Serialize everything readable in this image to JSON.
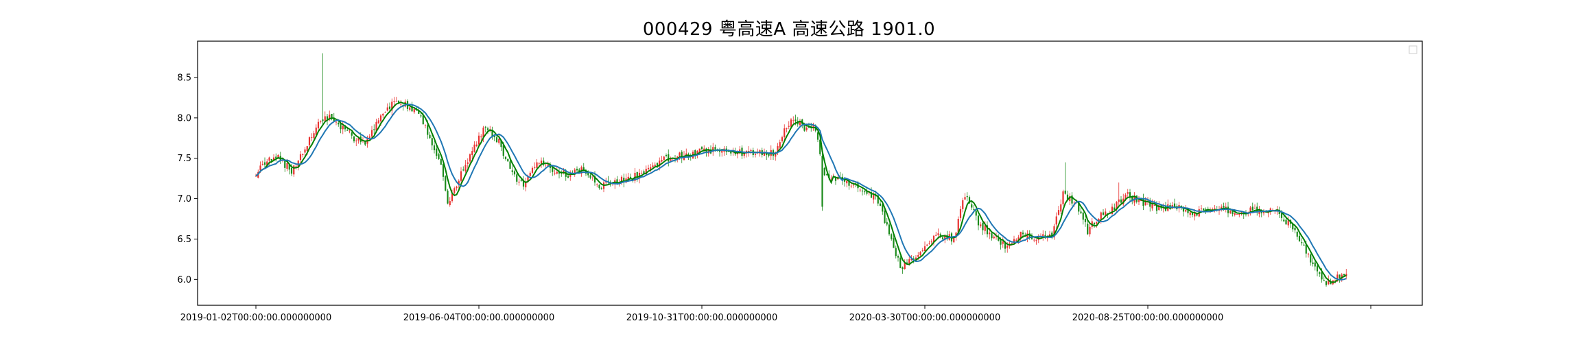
{
  "chart_data": {
    "type": "candlestick",
    "title": "000429 粤高速A 高速公路 1901.0",
    "xlabel": "",
    "ylabel": "",
    "ylim": [
      5.68,
      8.95
    ],
    "grid": false,
    "legend": {
      "placement": "top-right",
      "entries": []
    },
    "y_ticks": [
      6.0,
      6.5,
      7.0,
      7.5,
      8.0,
      8.5
    ],
    "y_tick_labels": [
      "6.0",
      "6.5",
      "7.0",
      "7.5",
      "8.0",
      "8.5"
    ],
    "x_tick_labels": [
      "2019-01-02T00:00:00.000000000",
      "2019-06-04T00:00:00.000000000",
      "2019-10-31T00:00:00.000000000",
      "2020-03-30T00:00:00.000000000",
      "2020-08-25T00:00:00.000000000",
      ""
    ],
    "x_tick_index": [
      0,
      100,
      200,
      300,
      400,
      500
    ],
    "colors": {
      "up": "#e8312f",
      "down": "#1a8a1a",
      "ma_short": "#008000",
      "ma_long": "#1f77b4"
    },
    "series": [
      {
        "kind": "candlestick",
        "values": []
      },
      {
        "kind": "moving-average-short",
        "values": []
      },
      {
        "kind": "moving-average-long",
        "values": []
      }
    ],
    "close_anchors": [
      [
        0,
        7.3
      ],
      [
        4,
        7.45
      ],
      [
        10,
        7.5
      ],
      [
        16,
        7.35
      ],
      [
        22,
        7.6
      ],
      [
        28,
        7.95
      ],
      [
        33,
        8.0
      ],
      [
        38,
        7.9
      ],
      [
        44,
        7.75
      ],
      [
        49,
        7.7
      ],
      [
        56,
        8.0
      ],
      [
        62,
        8.2
      ],
      [
        68,
        8.15
      ],
      [
        74,
        8.0
      ],
      [
        79,
        7.7
      ],
      [
        83,
        7.4
      ],
      [
        86,
        6.95
      ],
      [
        92,
        7.3
      ],
      [
        97,
        7.6
      ],
      [
        103,
        7.9
      ],
      [
        109,
        7.7
      ],
      [
        115,
        7.3
      ],
      [
        120,
        7.15
      ],
      [
        126,
        7.45
      ],
      [
        133,
        7.35
      ],
      [
        140,
        7.3
      ],
      [
        147,
        7.35
      ],
      [
        154,
        7.15
      ],
      [
        160,
        7.2
      ],
      [
        168,
        7.25
      ],
      [
        176,
        7.35
      ],
      [
        184,
        7.5
      ],
      [
        192,
        7.55
      ],
      [
        200,
        7.6
      ],
      [
        210,
        7.6
      ],
      [
        220,
        7.57
      ],
      [
        232,
        7.57
      ],
      [
        240,
        7.98
      ],
      [
        246,
        7.88
      ],
      [
        251,
        7.87
      ],
      [
        255,
        7.25
      ],
      [
        262,
        7.25
      ],
      [
        270,
        7.15
      ],
      [
        278,
        7.0
      ],
      [
        284,
        6.6
      ],
      [
        289,
        6.15
      ],
      [
        294,
        6.25
      ],
      [
        300,
        6.4
      ],
      [
        306,
        6.55
      ],
      [
        313,
        6.5
      ],
      [
        318,
        7.05
      ],
      [
        324,
        6.7
      ],
      [
        330,
        6.55
      ],
      [
        336,
        6.4
      ],
      [
        343,
        6.55
      ],
      [
        350,
        6.5
      ],
      [
        357,
        6.55
      ],
      [
        362,
        7.05
      ],
      [
        368,
        6.95
      ],
      [
        373,
        6.6
      ],
      [
        377,
        6.75
      ],
      [
        383,
        6.85
      ],
      [
        390,
        7.05
      ],
      [
        398,
        6.95
      ],
      [
        405,
        6.88
      ],
      [
        412,
        6.9
      ],
      [
        420,
        6.82
      ],
      [
        430,
        6.87
      ],
      [
        440,
        6.85
      ],
      [
        450,
        6.85
      ],
      [
        458,
        6.83
      ],
      [
        466,
        6.6
      ],
      [
        472,
        6.3
      ],
      [
        478,
        6.0
      ],
      [
        482,
        5.93
      ],
      [
        486,
        6.05
      ],
      [
        489,
        6.03
      ]
    ],
    "spikes": [
      {
        "index": 30,
        "high": 8.8
      },
      {
        "index": 254,
        "low": 6.85
      },
      {
        "index": 363,
        "high": 7.45
      },
      {
        "index": 387,
        "high": 7.2
      }
    ],
    "n_points": 490
  }
}
